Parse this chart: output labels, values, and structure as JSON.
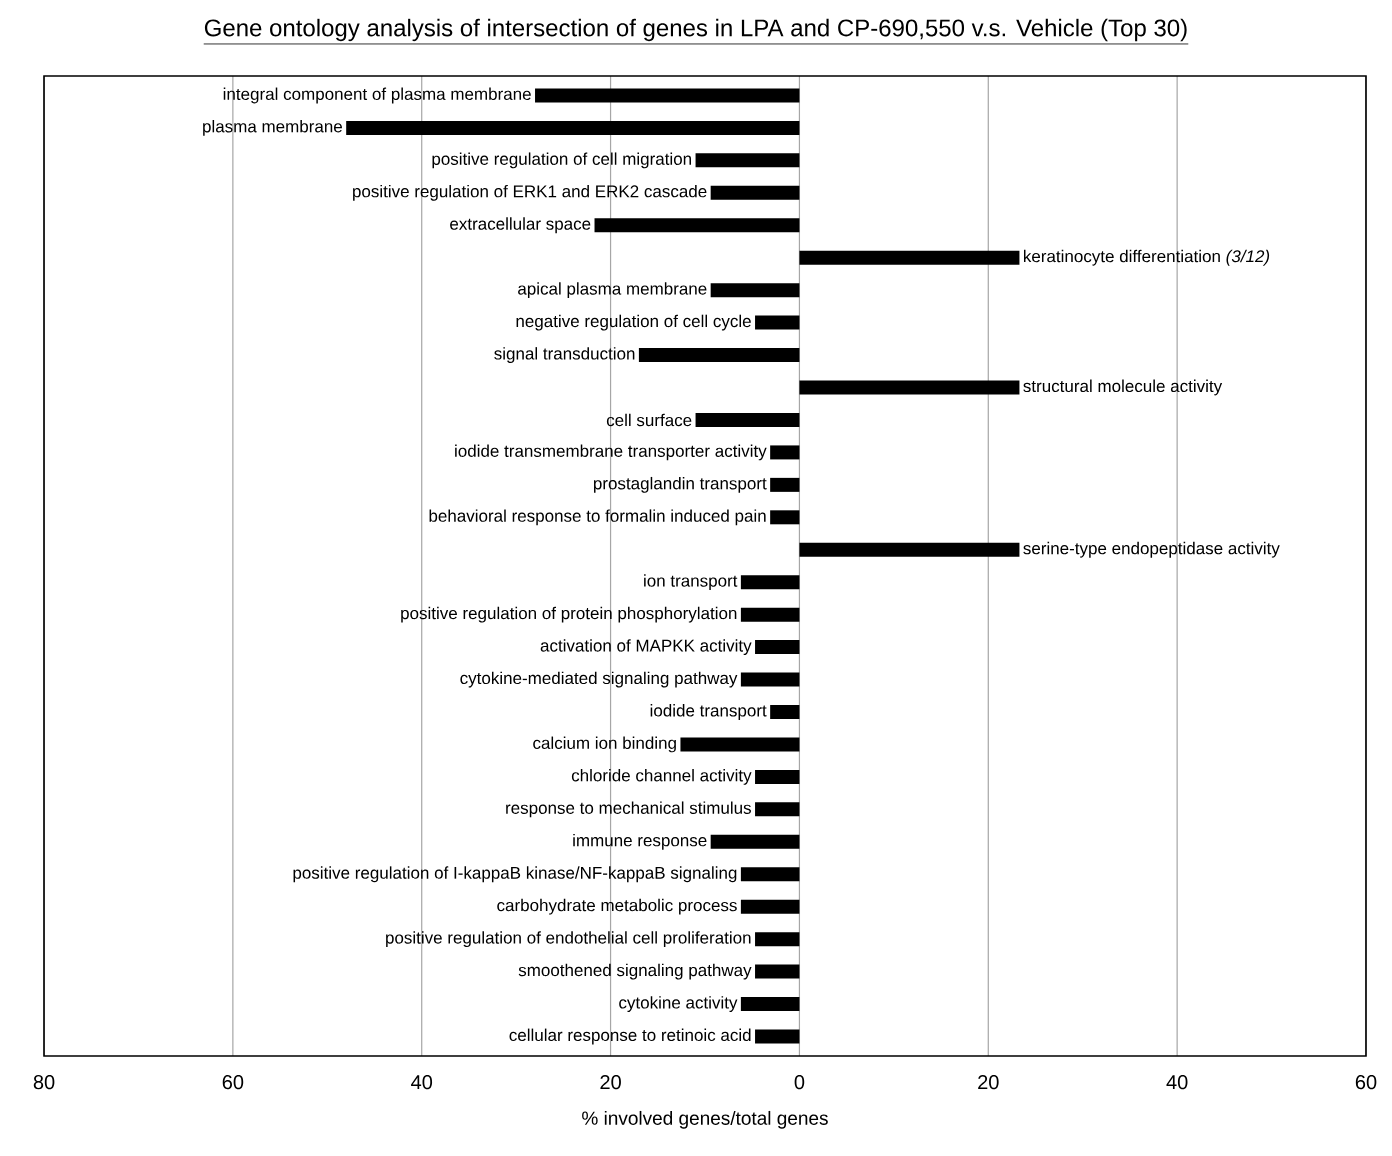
{
  "chart_data": {
    "type": "bar",
    "orientation": "horizontal",
    "title": "Gene ontology analysis of intersection of genes in LPA and CP-690,550 v.s. Vehicle (Top 30)",
    "xlabel": "% involved genes/total genes",
    "categories": [
      "integral component of plasma membrane",
      "plasma membrane",
      "positive regulation of cell migration",
      "positive regulation of ERK1 and ERK2 cascade",
      "extracellular space",
      "keratinocyte differentiation *(3/12)*",
      "apical plasma membrane",
      "negative regulation of cell cycle",
      "signal transduction",
      "structural molecule activity",
      "cell surface",
      "iodide transmembrane transporter activity",
      "prostaglandin transport",
      "behavioral response to formalin induced pain",
      "serine-type endopeptidase activity",
      "ion transport",
      "positive regulation of protein phosphorylation",
      "activation of MAPKK activity",
      "cytokine-mediated signaling pathway",
      "iodide transport",
      "calcium ion binding",
      "chloride channel activity",
      "response to mechanical stimulus",
      "immune response",
      "positive regulation of I-kappaB kinase/NF-kappaB signaling",
      "carbohydrate metabolic process",
      "positive regulation of endothelial cell proliferation",
      "smoothened signaling pathway",
      "cytokine activity",
      "cellular response to retinoic acid"
    ],
    "values": [
      -28,
      -48,
      -11,
      -9.4,
      -21.7,
      23.3,
      -9.4,
      -4.7,
      -17,
      23.3,
      -11,
      -3.1,
      -3.1,
      -3.1,
      23.3,
      -6.2,
      -6.2,
      -4.7,
      -6.2,
      -3.1,
      -12.6,
      -4.7,
      -4.7,
      -9.4,
      -6.2,
      -6.2,
      -4.7,
      -4.7,
      -6.2,
      -4.7
    ],
    "color": "#000000",
    "xlim": [
      -80,
      60
    ],
    "xticks": [
      {
        "value": -80,
        "label": "80"
      },
      {
        "value": -60,
        "label": "60"
      },
      {
        "value": -40,
        "label": "40"
      },
      {
        "value": -20,
        "label": "20"
      },
      0,
      20,
      40,
      60
    ],
    "grid": "x"
  }
}
